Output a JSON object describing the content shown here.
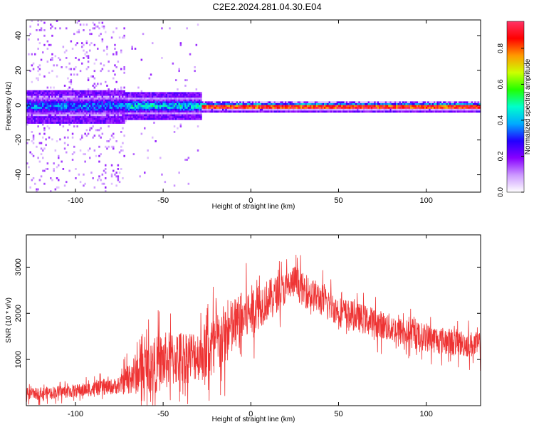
{
  "title": "C2E2.2024.281.04.30.E04",
  "colors": {
    "snr_line": "#ee3333",
    "colormap": [
      "#ffffff",
      "#cc99ff",
      "#8800ff",
      "#2200ff",
      "#00aaff",
      "#00ffcc",
      "#22ff00",
      "#ccff00",
      "#ff9900",
      "#ff0000",
      "#ff3366"
    ]
  },
  "chart_data": [
    {
      "type": "heatmap",
      "xlabel": "Height of straight line (km)",
      "ylabel": "Frequency (Hz)",
      "xlim": [
        -128,
        131
      ],
      "ylim": [
        -50,
        49
      ],
      "xticks": [
        -100,
        -50,
        0,
        50,
        100
      ],
      "xtick_labels": [
        "-100",
        "-50",
        "0",
        "50",
        "100"
      ],
      "yticks": [
        -40,
        -20,
        0,
        20,
        40
      ],
      "ytick_labels": [
        "-40",
        "-20",
        "0",
        "20",
        "40"
      ],
      "colorbar": {
        "label": "Normalized spectral amplitude",
        "range": [
          0,
          0.95
        ],
        "ticks": [
          0.0,
          0.2,
          0.4,
          0.6,
          0.8
        ],
        "tick_labels": [
          "0.0",
          "0.2",
          "0.4",
          "0.6",
          "0.8"
        ]
      },
      "band": {
        "center_freq_hz": 0,
        "segments": [
          {
            "x_range": [
              -128,
              -72
            ],
            "half_width_hz": 6,
            "peak_amplitude": 0.45,
            "scatter": "dense noise across all frequencies"
          },
          {
            "x_range": [
              -72,
              -28
            ],
            "half_width_hz": 5,
            "peak_amplitude": 0.55,
            "scatter": "sparse"
          },
          {
            "x_range": [
              -28,
              131
            ],
            "half_width_hz": 2,
            "peak_amplitude": 0.9,
            "scatter": "none"
          }
        ]
      },
      "grid": false
    },
    {
      "type": "line",
      "xlabel": "Height of straight line (km)",
      "ylabel": "SNR (10 * v/v)",
      "xlim": [
        -128,
        131
      ],
      "ylim": [
        0,
        3700
      ],
      "xticks": [
        -100,
        -50,
        0,
        50,
        100
      ],
      "xtick_labels": [
        "-100",
        "-50",
        "0",
        "50",
        "100"
      ],
      "yticks": [
        1000,
        2000,
        3000
      ],
      "ytick_labels": [
        "1000",
        "2000",
        "3000"
      ],
      "series": [
        {
          "envelope_x": [
            -128,
            -100,
            -75,
            -70,
            -60,
            -50,
            -40,
            -30,
            -22,
            -16,
            -10,
            0,
            10,
            20,
            25,
            30,
            40,
            50,
            70,
            90,
            110,
            131
          ],
          "envelope_mean": [
            250,
            320,
            430,
            600,
            800,
            950,
            1050,
            1100,
            1250,
            1450,
            1700,
            2050,
            2300,
            2550,
            2700,
            2500,
            2300,
            2050,
            1800,
            1550,
            1400,
            1300
          ],
          "envelope_spread": [
            150,
            180,
            220,
            450,
            700,
            800,
            750,
            700,
            950,
            900,
            800,
            700,
            550,
            450,
            450,
            450,
            450,
            400,
            400,
            380,
            380,
            350
          ]
        }
      ],
      "grid": false
    }
  ]
}
